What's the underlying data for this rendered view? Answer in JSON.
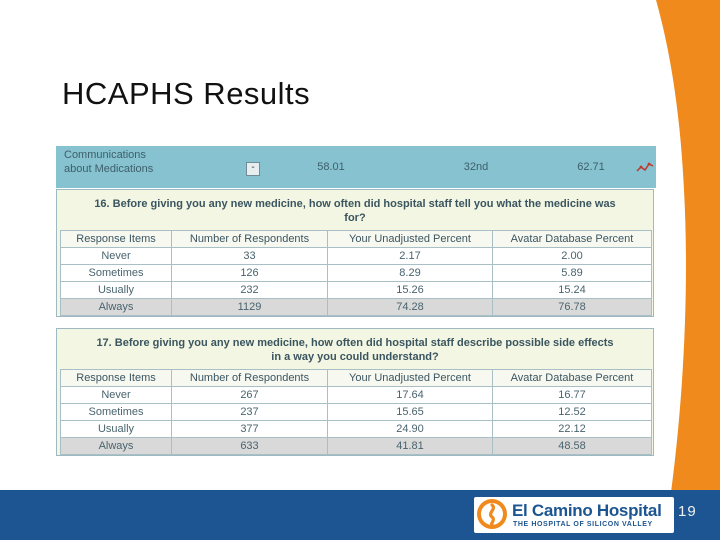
{
  "slide": {
    "title": "HCAPHS Results",
    "page_number": "19"
  },
  "summary": {
    "category": "Communications about Medications",
    "value1": "58.01",
    "rank": "32nd",
    "value3": "62.71",
    "collapse_symbol": "-"
  },
  "columns": [
    "Response Items",
    "Number of Respondents",
    "Your Unadjusted Percent",
    "Avatar Database Percent"
  ],
  "questions": [
    {
      "title": "16. Before giving you any new medicine, how often did hospital staff tell you what the medicine was for?",
      "rows": [
        [
          "Never",
          "33",
          "2.17",
          "2.00"
        ],
        [
          "Sometimes",
          "126",
          "8.29",
          "5.89"
        ],
        [
          "Usually",
          "232",
          "15.26",
          "15.24"
        ],
        [
          "Always",
          "1129",
          "74.28",
          "76.78"
        ]
      ]
    },
    {
      "title": "17. Before giving you any new medicine, how often did hospital staff describe possible side effects in a way you could understand?",
      "rows": [
        [
          "Never",
          "267",
          "17.64",
          "16.77"
        ],
        [
          "Sometimes",
          "237",
          "15.65",
          "12.52"
        ],
        [
          "Usually",
          "377",
          "24.90",
          "22.12"
        ],
        [
          "Always",
          "633",
          "41.81",
          "48.58"
        ]
      ]
    }
  ],
  "logo": {
    "name": "El Camino Hospital",
    "tagline": "THE HOSPITAL OF SILICON VALLEY"
  },
  "colors": {
    "orange": "#f08a1c",
    "navy": "#1c5591",
    "teal_bar": "#86c2cf",
    "panel": "#f2f6e2"
  }
}
